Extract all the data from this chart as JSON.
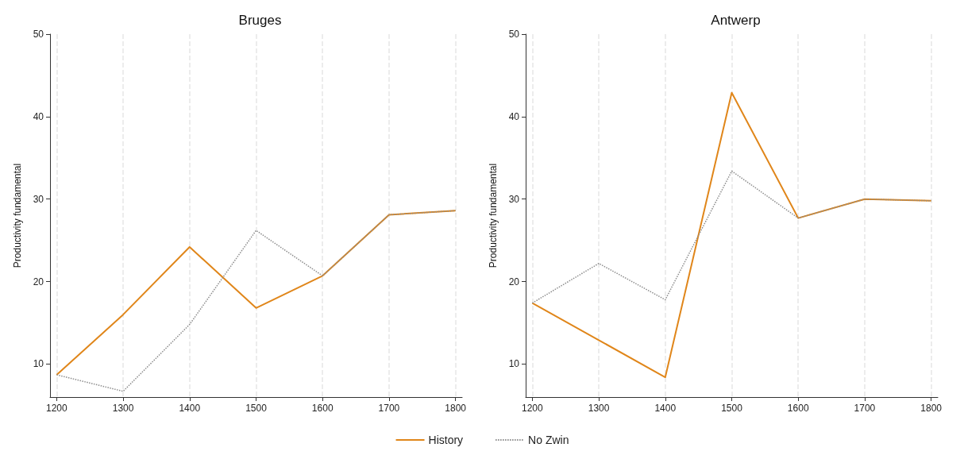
{
  "chart_data": [
    {
      "type": "line",
      "title": "Bruges",
      "ylabel": "Productivity fundamental",
      "x": [
        1200,
        1300,
        1400,
        1500,
        1600,
        1700,
        1800
      ],
      "xlim": [
        1190,
        1810
      ],
      "xticks": [
        1200,
        1300,
        1400,
        1500,
        1600,
        1700,
        1800
      ],
      "ylim": [
        6,
        50
      ],
      "yticks": [
        10,
        20,
        30,
        40,
        50
      ],
      "grid": "x",
      "legend": "bottom",
      "marker": "none",
      "series": [
        {
          "name": "History",
          "color": "#e0861a",
          "line_style": "solid",
          "values": [
            8.7,
            16.0,
            24.2,
            16.8,
            20.7,
            28.1,
            28.6
          ]
        },
        {
          "name": "No Zwin",
          "color": "#8c8c8c",
          "line_style": "dotted",
          "values": [
            8.7,
            6.7,
            14.8,
            26.2,
            20.7,
            28.1,
            28.6
          ]
        }
      ]
    },
    {
      "type": "line",
      "title": "Antwerp",
      "ylabel": "Productivity fundamental",
      "x": [
        1200,
        1300,
        1400,
        1500,
        1600,
        1700,
        1800
      ],
      "xlim": [
        1190,
        1810
      ],
      "xticks": [
        1200,
        1300,
        1400,
        1500,
        1600,
        1700,
        1800
      ],
      "ylim": [
        6,
        50
      ],
      "yticks": [
        10,
        20,
        30,
        40,
        50
      ],
      "grid": "x",
      "marker": "none",
      "series": [
        {
          "name": "History",
          "color": "#e0861a",
          "line_style": "solid",
          "values": [
            17.4,
            12.9,
            8.4,
            42.9,
            27.7,
            30.0,
            29.8
          ]
        },
        {
          "name": "No Zwin",
          "color": "#8c8c8c",
          "line_style": "dotted",
          "values": [
            17.4,
            22.2,
            17.8,
            33.4,
            27.7,
            30.0,
            29.8
          ]
        }
      ]
    }
  ]
}
